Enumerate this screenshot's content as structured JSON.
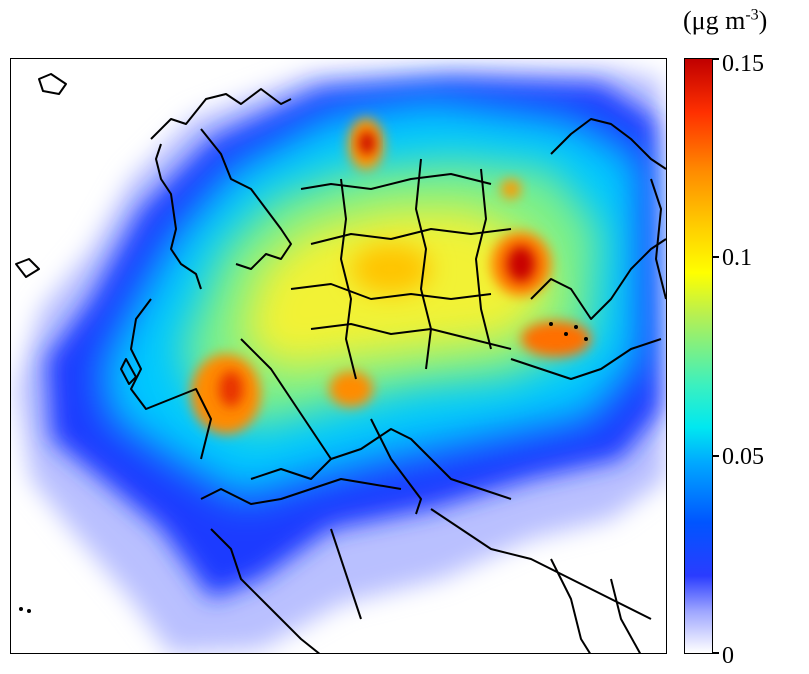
{
  "legend": {
    "unit_prefix": "(μg m",
    "unit_exponent": "-3",
    "unit_suffix": ")",
    "ticks": [
      "0.15",
      "0.1",
      "0.05",
      "0"
    ],
    "range": [
      0,
      0.15
    ]
  },
  "colors": {
    "low": "#ffffff",
    "light-blue": "#9ea6ff",
    "blue": "#0055ff",
    "cyan": "#00e8f0",
    "yellow": "#ffff00",
    "orange": "#ff8c00",
    "red": "#c00000"
  }
}
